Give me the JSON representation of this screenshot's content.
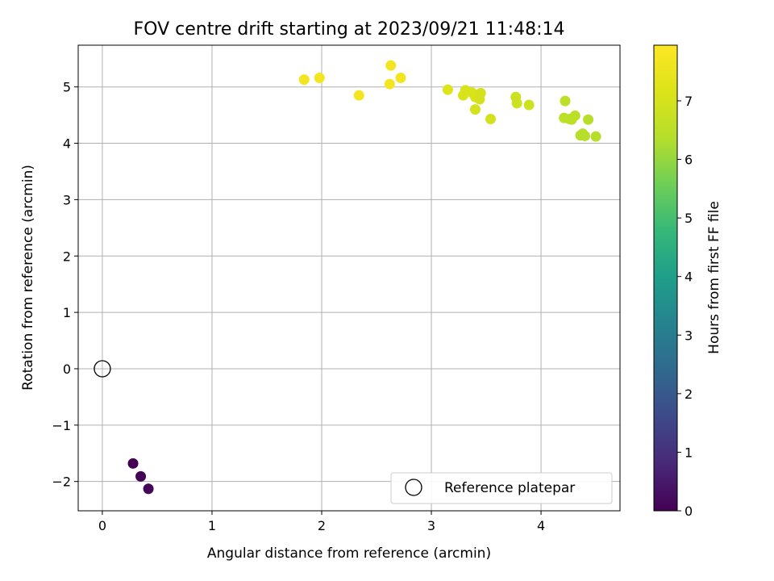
{
  "chart_data": {
    "type": "scatter",
    "title": "FOV centre drift starting at 2023/09/21 11:48:14",
    "xlabel": "Angular distance from reference (arcmin)",
    "ylabel": "Rotation from reference (arcmin)",
    "xlim": [
      -0.22,
      4.72
    ],
    "ylim": [
      -2.52,
      5.74
    ],
    "x_ticks": [
      0,
      1,
      2,
      3,
      4
    ],
    "y_ticks": [
      -2,
      -1,
      0,
      1,
      2,
      3,
      4,
      5
    ],
    "x_tick_labels": [
      "0",
      "1",
      "2",
      "3",
      "4"
    ],
    "y_tick_labels": [
      "−2",
      "−1",
      "0",
      "1",
      "2",
      "3",
      "4",
      "5"
    ],
    "grid": true,
    "colormap": "viridis",
    "colorbar": {
      "label": "Hours from first FF file",
      "range": [
        0,
        7.95
      ],
      "ticks": [
        0,
        1,
        2,
        3,
        4,
        5,
        6,
        7
      ],
      "tick_labels": [
        "0",
        "1",
        "2",
        "3",
        "4",
        "5",
        "6",
        "7"
      ]
    },
    "reference_point": {
      "x": 0,
      "y": 0
    },
    "legend": {
      "placement": "lower right",
      "entries": [
        "Reference platepar"
      ]
    },
    "series": [
      {
        "points": [
          {
            "x": 0.28,
            "y": -1.68,
            "hours": 0.0
          },
          {
            "x": 0.35,
            "y": -1.91,
            "hours": 0.05
          },
          {
            "x": 0.42,
            "y": -2.13,
            "hours": 0.1
          },
          {
            "x": 1.84,
            "y": 5.13,
            "hours": 7.7
          },
          {
            "x": 1.98,
            "y": 5.16,
            "hours": 7.7
          },
          {
            "x": 2.34,
            "y": 4.85,
            "hours": 7.7
          },
          {
            "x": 2.63,
            "y": 5.38,
            "hours": 7.7
          },
          {
            "x": 2.62,
            "y": 5.05,
            "hours": 7.7
          },
          {
            "x": 2.72,
            "y": 5.16,
            "hours": 7.7
          },
          {
            "x": 3.15,
            "y": 4.95,
            "hours": 7.2
          },
          {
            "x": 3.29,
            "y": 4.85,
            "hours": 7.1
          },
          {
            "x": 3.31,
            "y": 4.94,
            "hours": 7.1
          },
          {
            "x": 3.37,
            "y": 4.9,
            "hours": 7.1
          },
          {
            "x": 3.4,
            "y": 4.82,
            "hours": 7.1
          },
          {
            "x": 3.4,
            "y": 4.6,
            "hours": 7.0
          },
          {
            "x": 3.44,
            "y": 4.78,
            "hours": 7.0
          },
          {
            "x": 3.45,
            "y": 4.89,
            "hours": 7.0
          },
          {
            "x": 3.54,
            "y": 4.43,
            "hours": 7.0
          },
          {
            "x": 3.77,
            "y": 4.82,
            "hours": 6.8
          },
          {
            "x": 3.78,
            "y": 4.71,
            "hours": 6.8
          },
          {
            "x": 3.89,
            "y": 4.68,
            "hours": 6.8
          },
          {
            "x": 4.21,
            "y": 4.45,
            "hours": 6.5
          },
          {
            "x": 4.22,
            "y": 4.75,
            "hours": 6.5
          },
          {
            "x": 4.26,
            "y": 4.43,
            "hours": 6.5
          },
          {
            "x": 4.28,
            "y": 4.42,
            "hours": 6.5
          },
          {
            "x": 4.31,
            "y": 4.49,
            "hours": 6.5
          },
          {
            "x": 4.36,
            "y": 4.14,
            "hours": 6.4
          },
          {
            "x": 4.38,
            "y": 4.17,
            "hours": 6.4
          },
          {
            "x": 4.4,
            "y": 4.13,
            "hours": 6.4
          },
          {
            "x": 4.43,
            "y": 4.42,
            "hours": 6.4
          },
          {
            "x": 4.5,
            "y": 4.12,
            "hours": 6.4
          }
        ]
      }
    ]
  }
}
